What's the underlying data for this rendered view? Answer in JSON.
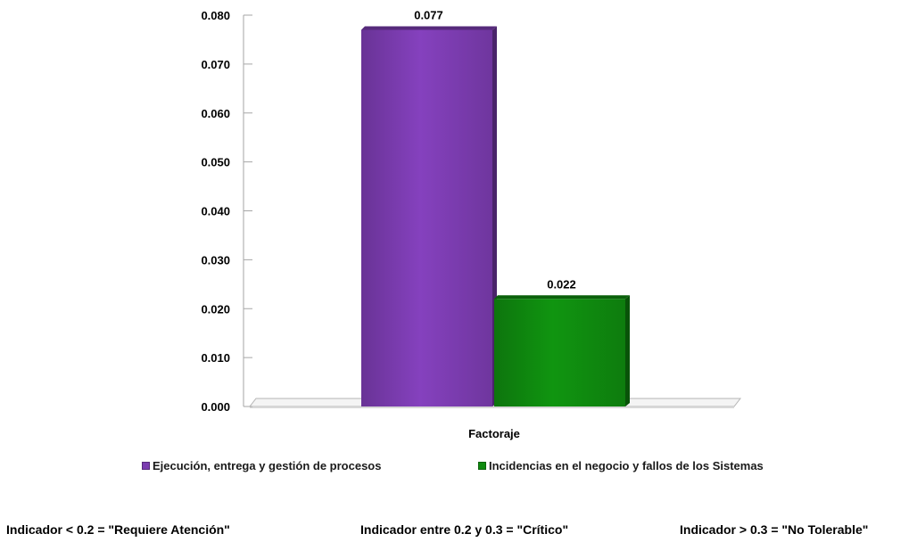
{
  "chart_data": {
    "type": "bar",
    "categories": [
      "Factoraje"
    ],
    "series": [
      {
        "name": "Ejecución, entrega y gestión de procesos",
        "values": [
          0.077
        ],
        "label": "0.077",
        "color": "#7b3cb0"
      },
      {
        "name": "Incidencias en el negocio y fallos de los Sistemas",
        "values": [
          0.022
        ],
        "label": "0.022",
        "color": "#0f8a0f"
      }
    ],
    "title": "",
    "xlabel": "",
    "ylabel": "",
    "ylim": [
      0,
      0.08
    ],
    "yticks": [
      "0.000",
      "0.010",
      "0.020",
      "0.030",
      "0.040",
      "0.050",
      "0.060",
      "0.070",
      "0.080"
    ],
    "grid": false,
    "legend_position": "bottom",
    "style": "3d"
  },
  "footer": {
    "items": [
      "Indicador < 0.2  = \"Requiere Atención\"",
      "Indicador entre 0.2 y 0.3 = \"Crítico\"",
      "Indicador > 0.3 = \"No Tolerable\""
    ]
  }
}
